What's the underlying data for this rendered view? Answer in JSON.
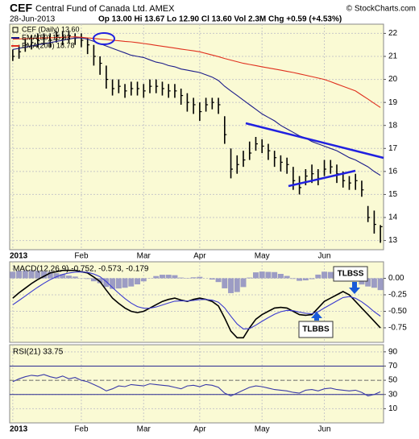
{
  "chart_data": [
    {
      "type": "ohlc",
      "title": "CEF",
      "subtitle": "Central Fund of Canada Ltd. AMEX",
      "date": "28-Jun-2013",
      "quote": "Op 13.00 Hi 13.67 Lo 12.90 Cl 13.60 Vol 2.3M Chg +0.59 (+4.53%)",
      "source": "© StockCharts.com",
      "categories": [
        "2013",
        null,
        null,
        null,
        null,
        null,
        null,
        null,
        null,
        null,
        null,
        "Feb",
        null,
        null,
        null,
        null,
        null,
        null,
        null,
        null,
        null,
        "Mar",
        null,
        null,
        null,
        null,
        null,
        null,
        null,
        null,
        "Apr",
        null,
        null,
        null,
        null,
        null,
        null,
        null,
        null,
        null,
        "May",
        null,
        null,
        null,
        null,
        null,
        null,
        null,
        null,
        null,
        "Jun",
        null,
        null,
        null,
        null,
        null,
        null,
        null,
        null,
        null
      ],
      "series": [
        {
          "name": "CEF (Daily) 13.60",
          "style": "ohlc",
          "color": "#000000",
          "high": [
            21.3,
            21.5,
            21.8,
            21.9,
            22.0,
            22.0,
            22.0,
            22.1,
            22.1,
            22.1,
            22.0,
            22.0,
            21.8,
            21.5,
            21.0,
            20.6,
            20.0,
            20.0,
            19.8,
            19.9,
            19.9,
            19.8,
            20.0,
            20.0,
            19.9,
            19.8,
            19.8,
            19.6,
            19.4,
            19.2,
            19.0,
            19.2,
            19.2,
            19.2,
            18.4,
            17.0,
            16.7,
            16.9,
            17.3,
            17.5,
            17.4,
            17.2,
            16.9,
            16.7,
            16.6,
            16.2,
            15.8,
            16.1,
            16.3,
            16.1,
            16.5,
            16.5,
            16.3,
            16.0,
            15.8,
            15.9,
            15.6,
            14.5,
            14.3,
            13.67
          ],
          "low": [
            20.8,
            20.9,
            21.2,
            21.3,
            21.4,
            21.5,
            21.4,
            21.6,
            21.5,
            21.6,
            21.5,
            21.4,
            21.1,
            20.6,
            20.2,
            19.6,
            19.3,
            19.4,
            19.2,
            19.3,
            19.3,
            19.2,
            19.4,
            19.4,
            19.3,
            19.2,
            19.2,
            18.9,
            18.6,
            18.5,
            18.2,
            18.6,
            18.7,
            18.5,
            17.2,
            15.7,
            15.9,
            16.2,
            16.5,
            16.9,
            16.8,
            16.5,
            16.2,
            16.0,
            15.9,
            15.2,
            15.0,
            15.4,
            15.5,
            15.4,
            15.8,
            15.9,
            15.5,
            15.3,
            15.2,
            15.2,
            14.9,
            13.8,
            13.3,
            12.9
          ],
          "close": [
            21.0,
            21.2,
            21.5,
            21.6,
            21.7,
            21.8,
            21.7,
            21.9,
            21.8,
            21.9,
            21.8,
            21.7,
            21.5,
            21.0,
            20.7,
            20.0,
            19.6,
            19.7,
            19.5,
            19.6,
            19.6,
            19.5,
            19.7,
            19.7,
            19.6,
            19.5,
            19.5,
            19.3,
            19.0,
            18.9,
            18.6,
            18.9,
            19.0,
            18.9,
            17.6,
            16.1,
            16.3,
            16.5,
            16.8,
            17.2,
            17.1,
            16.9,
            16.6,
            16.4,
            16.3,
            15.6,
            15.3,
            15.8,
            15.9,
            15.7,
            16.1,
            16.2,
            15.9,
            15.6,
            15.5,
            15.6,
            15.2,
            14.0,
            13.7,
            13.6
          ]
        },
        {
          "name": "EMA(50) 15.83",
          "style": "line",
          "color": "#1c1c8a",
          "values": [
            21.3,
            21.35,
            21.4,
            21.45,
            21.5,
            21.55,
            21.6,
            21.65,
            21.7,
            21.75,
            21.8,
            21.8,
            21.75,
            21.65,
            21.55,
            21.45,
            21.35,
            21.25,
            21.15,
            21.05,
            21.0,
            20.95,
            20.85,
            20.75,
            20.7,
            20.6,
            20.55,
            20.45,
            20.4,
            20.35,
            20.3,
            20.2,
            20.1,
            19.95,
            19.7,
            19.5,
            19.3,
            19.1,
            18.9,
            18.7,
            18.5,
            18.35,
            18.2,
            18.0,
            17.85,
            17.7,
            17.55,
            17.45,
            17.3,
            17.2,
            17.1,
            17.0,
            16.9,
            16.75,
            16.6,
            16.5,
            16.35,
            16.2,
            16.0,
            15.83
          ]
        },
        {
          "name": "EMA(200) 18.78",
          "style": "line",
          "color": "#e0301e",
          "values": [
            21.75,
            21.76,
            21.77,
            21.78,
            21.79,
            21.8,
            21.81,
            21.82,
            21.83,
            21.84,
            21.85,
            21.83,
            21.8,
            21.78,
            21.75,
            21.73,
            21.7,
            21.68,
            21.65,
            21.63,
            21.6,
            21.56,
            21.52,
            21.48,
            21.44,
            21.4,
            21.36,
            21.32,
            21.28,
            21.24,
            21.2,
            21.13,
            21.06,
            20.99,
            20.91,
            20.84,
            20.77,
            20.7,
            20.65,
            20.6,
            20.55,
            20.5,
            20.45,
            20.4,
            20.35,
            20.3,
            20.24,
            20.18,
            20.12,
            20.06,
            20.0,
            19.9,
            19.8,
            19.7,
            19.6,
            19.5,
            19.32,
            19.14,
            18.96,
            18.78
          ]
        }
      ],
      "ylim": [
        12.6,
        22.4
      ],
      "yticks": [
        13,
        14,
        15,
        16,
        17,
        18,
        19,
        20,
        21,
        22
      ],
      "grid": true
    },
    {
      "type": "macd",
      "label": "MACD(12,26,9) -0.752, -0.573, -0.179",
      "annotations": [
        "TLBSS",
        "TLBBS"
      ],
      "series": [
        {
          "style": "histogram",
          "color": "#9c9cc4",
          "values": [
            0.1,
            0.115,
            0.12,
            0.12,
            0.115,
            0.106,
            0.1,
            0.077,
            0.062,
            0.04,
            0.026,
            0.004,
            -0.01,
            -0.045,
            -0.074,
            -0.13,
            -0.16,
            -0.154,
            -0.143,
            -0.124,
            -0.092,
            -0.046,
            0.003,
            0.034,
            0.054,
            0.054,
            0.047,
            0.011,
            -0.006,
            0.015,
            0.022,
            0.001,
            -0.019,
            -0.057,
            -0.152,
            -0.225,
            -0.208,
            -0.133,
            0.011,
            0.09,
            0.102,
            0.097,
            0.094,
            0.067,
            0.036,
            -0.009,
            -0.038,
            -0.031,
            -0.013,
            0.056,
            0.1,
            0.096,
            0.093,
            0.092,
            0.027,
            -0.047,
            -0.094,
            -0.124,
            -0.143,
            -0.179
          ]
        },
        {
          "style": "line",
          "color": "#000000",
          "values": [
            -0.3,
            -0.22,
            -0.15,
            -0.08,
            -0.02,
            0.03,
            0.08,
            0.1,
            0.12,
            0.12,
            0.12,
            0.1,
            0.08,
            0.02,
            -0.05,
            -0.18,
            -0.3,
            -0.38,
            -0.45,
            -0.5,
            -0.52,
            -0.5,
            -0.45,
            -0.4,
            -0.35,
            -0.32,
            -0.3,
            -0.33,
            -0.35,
            -0.32,
            -0.3,
            -0.32,
            -0.35,
            -0.42,
            -0.6,
            -0.8,
            -0.9,
            -0.9,
            -0.75,
            -0.62,
            -0.55,
            -0.5,
            -0.45,
            -0.44,
            -0.45,
            -0.5,
            -0.55,
            -0.56,
            -0.55,
            -0.45,
            -0.35,
            -0.3,
            -0.25,
            -0.2,
            -0.25,
            -0.35,
            -0.45,
            -0.55,
            -0.65,
            -0.752
          ]
        },
        {
          "style": "line",
          "color": "#3a3ad0",
          "values": [
            -0.4,
            -0.335,
            -0.27,
            -0.2,
            -0.135,
            -0.076,
            -0.02,
            0.023,
            0.058,
            0.08,
            0.094,
            0.096,
            0.09,
            0.065,
            0.024,
            -0.05,
            -0.14,
            -0.226,
            -0.307,
            -0.376,
            -0.428,
            -0.454,
            -0.453,
            -0.434,
            -0.404,
            -0.374,
            -0.347,
            -0.341,
            -0.344,
            -0.335,
            -0.322,
            -0.321,
            -0.331,
            -0.363,
            -0.448,
            -0.575,
            -0.692,
            -0.767,
            -0.761,
            -0.71,
            -0.652,
            -0.597,
            -0.544,
            -0.507,
            -0.486,
            -0.491,
            -0.512,
            -0.529,
            -0.537,
            -0.506,
            -0.45,
            -0.396,
            -0.343,
            -0.292,
            -0.277,
            -0.303,
            -0.356,
            -0.426,
            -0.507,
            -0.573
          ]
        }
      ],
      "ylim": [
        -0.97,
        0.25
      ],
      "yticks": [
        {
          "value": 0,
          "label": "0.00"
        },
        -0.25,
        {
          "value": -0.5,
          "label": "-0.50"
        },
        -0.75
      ],
      "grid": true
    },
    {
      "type": "rsi",
      "label": "RSI(21) 33.75",
      "series": [
        {
          "style": "line",
          "color": "#3a3aa8",
          "values": [
            48,
            52,
            55,
            57,
            56,
            58,
            55,
            53,
            56,
            52,
            54,
            50,
            48,
            44,
            40,
            35,
            38,
            42,
            41,
            44,
            43,
            42,
            45,
            44,
            43,
            42,
            40,
            38,
            42,
            43,
            41,
            44,
            43,
            40,
            32,
            28,
            32,
            36,
            40,
            42,
            41,
            39,
            37,
            36,
            35,
            33,
            32,
            36,
            37,
            35,
            38,
            39,
            37,
            36,
            35,
            36,
            33,
            28,
            30,
            33.75
          ]
        }
      ],
      "reference_lines": [
        70,
        50,
        30
      ],
      "ylim": [
        -10,
        100
      ],
      "yticks": [
        90,
        70,
        50,
        30,
        10
      ],
      "grid": true
    }
  ]
}
